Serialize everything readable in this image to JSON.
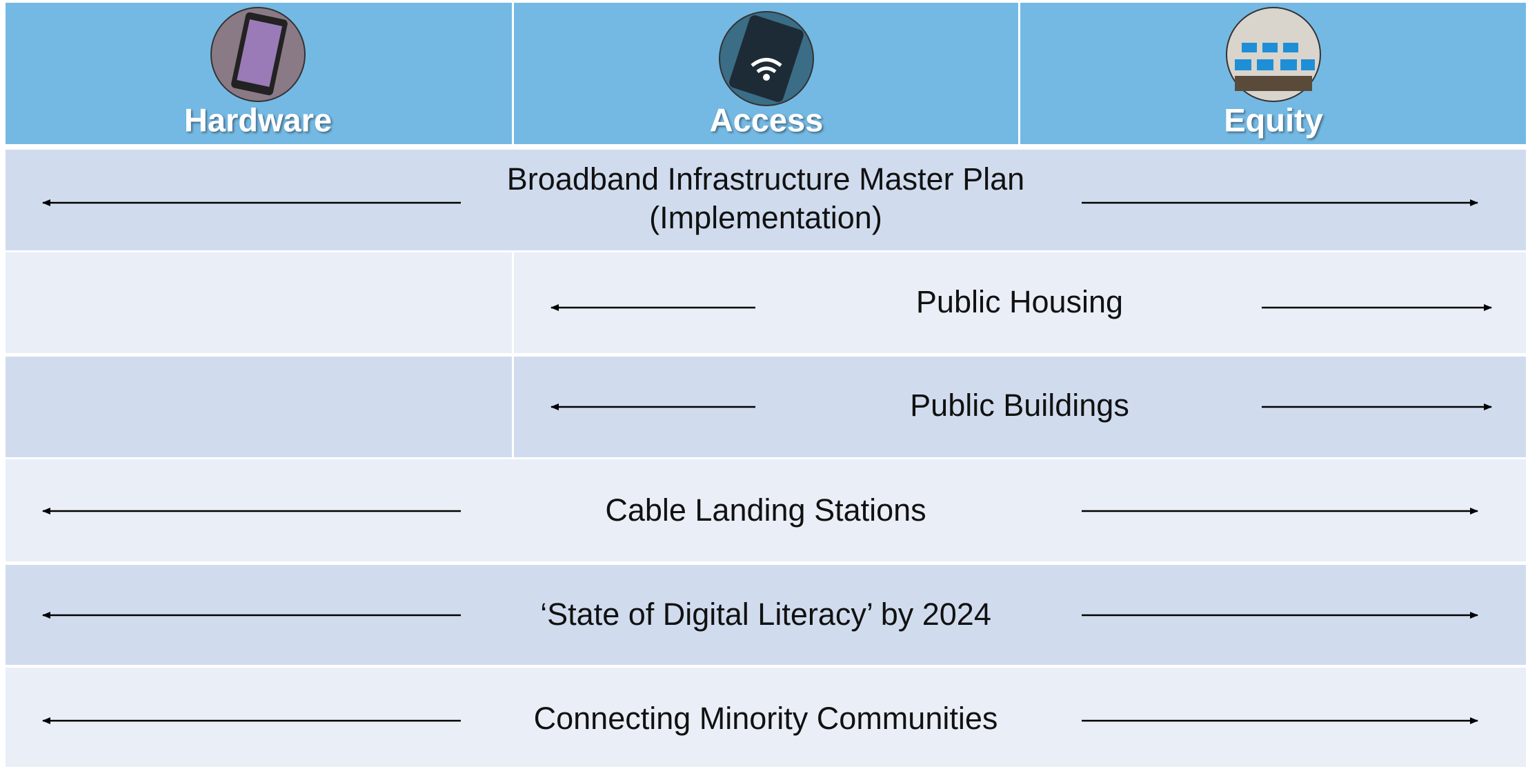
{
  "header": {
    "columns": [
      "Hardware",
      "Access",
      "Equity"
    ]
  },
  "rows": [
    {
      "lines": [
        "Broadband Infrastructure Master Plan",
        "(Implementation)"
      ]
    },
    {
      "lines": [
        "Public Housing"
      ]
    },
    {
      "lines": [
        "Public Buildings"
      ]
    },
    {
      "lines": [
        "Cable Landing Stations"
      ]
    },
    {
      "lines": [
        "‘State of Digital Literacy’ by 2024"
      ]
    },
    {
      "lines": [
        "Connecting Minority Communities"
      ]
    }
  ]
}
